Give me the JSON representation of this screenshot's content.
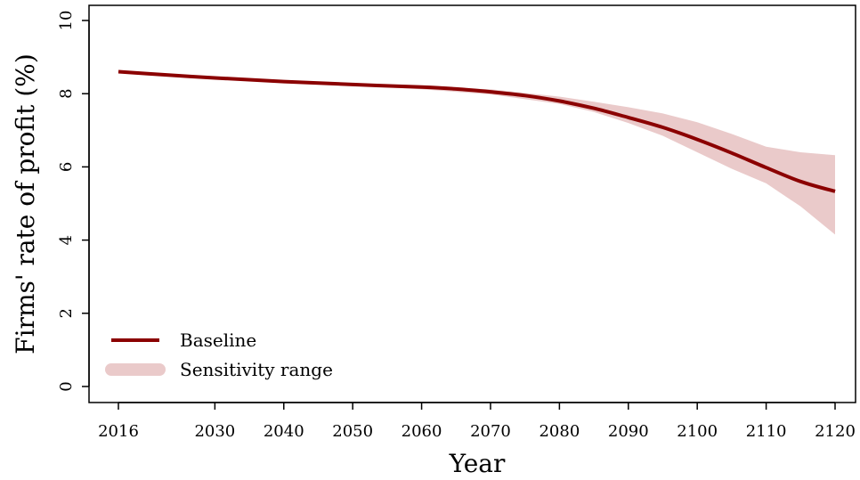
{
  "chart_data": {
    "type": "line",
    "title": "",
    "xlabel": "Year",
    "ylabel": "Firms' rate of profit (%)",
    "xlim": [
      2016,
      2120
    ],
    "ylim": [
      0,
      10
    ],
    "x_ticks": [
      2016,
      2030,
      2040,
      2050,
      2060,
      2070,
      2080,
      2090,
      2100,
      2110,
      2120
    ],
    "y_ticks": [
      0,
      2,
      4,
      6,
      8,
      10
    ],
    "grid": false,
    "legend_position": "bottom-left",
    "series": [
      {
        "name": "Baseline",
        "kind": "line",
        "color": "#8b0000",
        "x": [
          2016,
          2020,
          2030,
          2040,
          2050,
          2060,
          2065,
          2070,
          2075,
          2080,
          2085,
          2090,
          2095,
          2100,
          2105,
          2110,
          2115,
          2120
        ],
        "y": [
          8.6,
          8.55,
          8.43,
          8.33,
          8.25,
          8.18,
          8.13,
          8.05,
          7.95,
          7.8,
          7.6,
          7.35,
          7.08,
          6.75,
          6.38,
          5.98,
          5.6,
          5.33
        ]
      },
      {
        "name": "Sensitivity range",
        "kind": "band",
        "color": "#eacaca",
        "x": [
          2016,
          2040,
          2060,
          2070,
          2080,
          2085,
          2090,
          2095,
          2100,
          2105,
          2110,
          2115,
          2120
        ],
        "upper": [
          8.6,
          8.33,
          8.2,
          8.12,
          7.92,
          7.78,
          7.63,
          7.46,
          7.22,
          6.9,
          6.55,
          6.4,
          6.32
        ],
        "lower": [
          8.6,
          8.33,
          8.12,
          7.98,
          7.72,
          7.5,
          7.2,
          6.85,
          6.4,
          5.95,
          5.55,
          4.92,
          4.15
        ]
      }
    ]
  }
}
